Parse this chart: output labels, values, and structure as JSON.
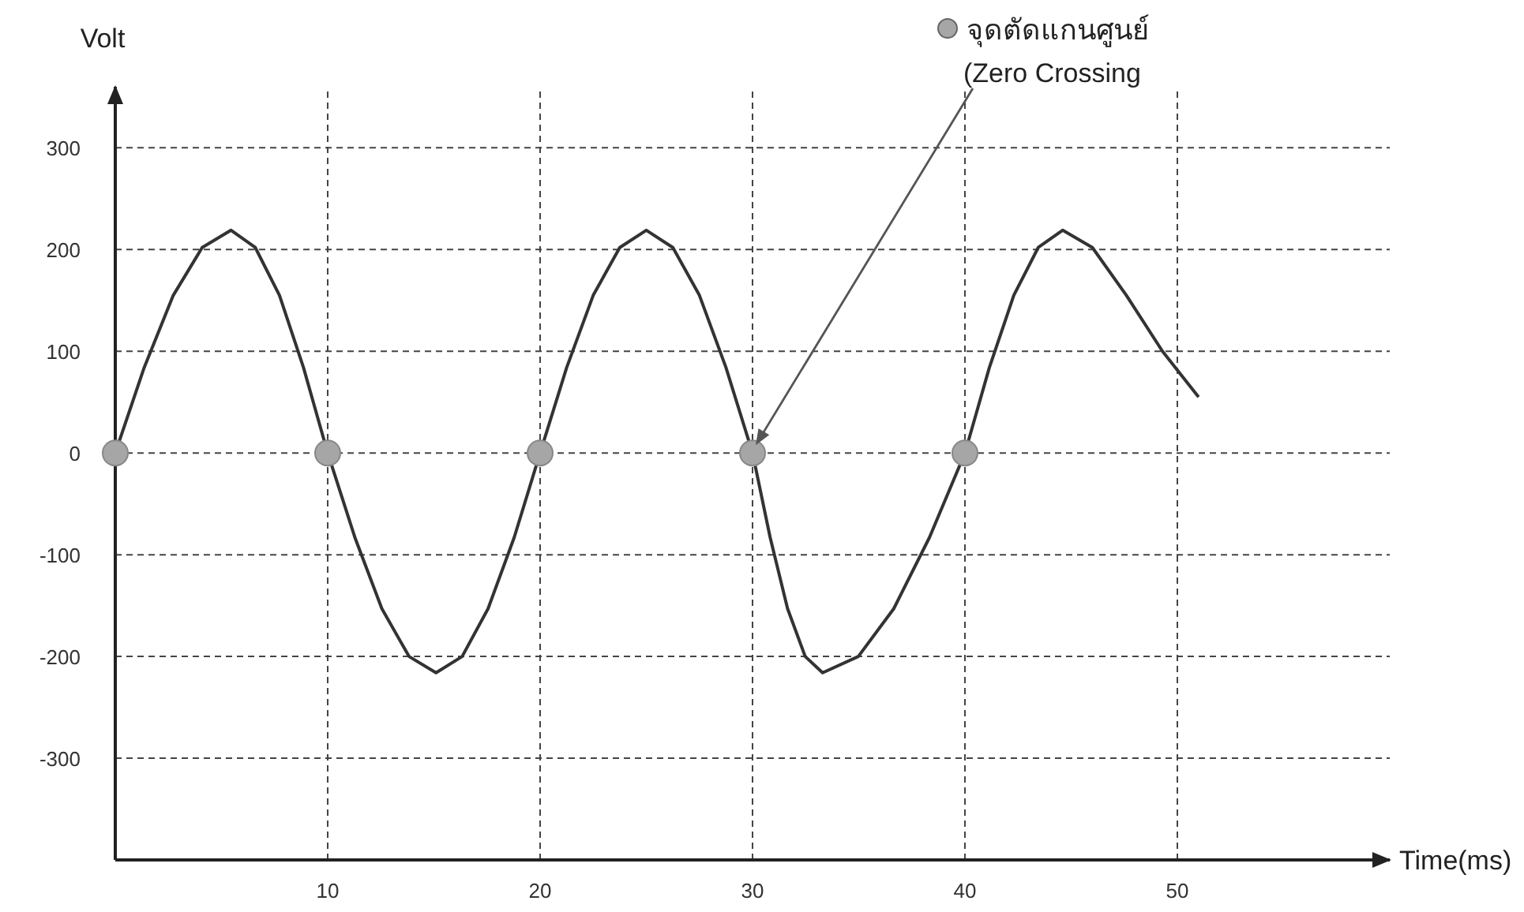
{
  "chart_data": {
    "type": "line",
    "xlabel": "Time(ms)",
    "ylabel": "Volt",
    "xlim": [
      0,
      60
    ],
    "ylim": [
      -400,
      360
    ],
    "xticks": [
      10,
      20,
      30,
      40,
      50
    ],
    "yticks": [
      -300,
      -200,
      -100,
      0,
      100,
      200,
      300
    ],
    "grid": true,
    "legend": "top right",
    "annotations": [
      "(Zero Crossing"
    ],
    "series": [
      {
        "color": "#333333",
        "marker": "none",
        "x": [
          0,
          1.36,
          2.73,
          4.09,
          5.45,
          6.59,
          7.73,
          8.86,
          10,
          11.28,
          12.55,
          13.83,
          15.1,
          16.33,
          17.55,
          18.78,
          20,
          21.25,
          22.5,
          23.75,
          25,
          26.25,
          27.5,
          28.75,
          30,
          30.83,
          31.65,
          32.48,
          33.3,
          34.98,
          36.65,
          38.33,
          40,
          41.15,
          42.3,
          43.45,
          44.6,
          46,
          47.6,
          49.3,
          51
        ],
        "values": [
          0,
          84,
          155,
          202,
          219,
          202,
          155,
          84,
          0,
          -83,
          -153,
          -200,
          -216,
          -200,
          -153,
          -83,
          0,
          84,
          155,
          202,
          219,
          202,
          155,
          84,
          0,
          -83,
          -153,
          -200,
          -216,
          -200,
          -153,
          -83,
          0,
          84,
          155,
          202,
          219,
          202,
          155,
          100,
          55
        ]
      },
      {
        "type": "scatter",
        "name": "จุดตัดแกนศูนย์",
        "color": "#a6a6a6",
        "marker": "circle",
        "x": [
          0,
          10,
          20,
          30,
          40
        ],
        "values": [
          0,
          0,
          0,
          0,
          0
        ]
      }
    ]
  }
}
